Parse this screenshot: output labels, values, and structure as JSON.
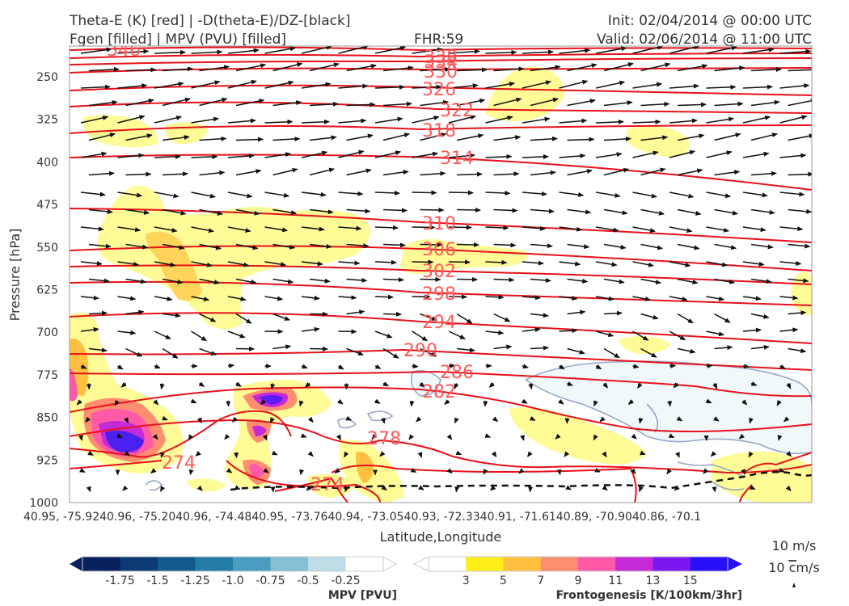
{
  "header": {
    "title_left_1": "Theta-E (K) [red] | -D(theta-E)/DZ-[black]",
    "title_left_2": "Fgen [filled] | MPV (PVU) [filled]",
    "fhr": "FHR:59",
    "init": "Init: 02/04/2014 @ 00:00 UTC",
    "valid": "Valid: 02/06/2014 @ 11:00 UTC"
  },
  "chart_data": {
    "type": "cross-section",
    "xlabel": "Latitude,Longitude",
    "ylabel": "Pressure [hPa]",
    "x_ticks": [
      "40.95, -75.92",
      "40.96, -75.20",
      "40.96, -74.48",
      "40.95, -73.76",
      "40.94, -73.05",
      "40.93, -72.33",
      "40.91, -71.61",
      "40.89, -70.90",
      "40.86, -70.1"
    ],
    "x_tick_texts": [
      "40.95, -75.92",
      "40.96, -75.20",
      "40.96, -74.48",
      "40.95, -73.76",
      "40.94, -73.05",
      "40.93, -72.33",
      "40.91, -71.61",
      "40.89, -70.90",
      "40.86, -70.1"
    ],
    "x_tick_labels": [
      "40.95, -75.92",
      "40.96, -75.20",
      "40.96, -74.48",
      "40.95, -73.76",
      "40.94, -73.05",
      "40.93, -72.33",
      "40.91, -71.61",
      "40.89, -70.90",
      "40.86, -70.1"
    ],
    "x_display": "40.95, -75.9240.96, -75.2040.96, -74.4840.95, -73.7640.94, -73.0540.93, -72.3340.91, -71.6140.89, -70.9040.86, -70.1",
    "x_strings": [
      "40.95, -75.92",
      "40.96, -75.20",
      "40.96, -74.48",
      "40.95, -73.76",
      "40.94, -73.05",
      "40.93, -72.33",
      "40.91, -71.61",
      "40.89, -70.90",
      "40.86, -70.1"
    ],
    "y_ticks": [
      1000,
      925,
      850,
      775,
      700,
      625,
      550,
      475,
      400,
      325,
      250
    ],
    "ylim": [
      1000,
      200
    ],
    "theta_e_labels": [
      "346",
      "338",
      "334",
      "330",
      "326",
      "322",
      "318",
      "314",
      "310",
      "306",
      "302",
      "298",
      "294",
      "290",
      "286",
      "282",
      "278",
      "274",
      "274"
    ],
    "mpv_colorbar": {
      "title": "MPV [PVU]",
      "ticks": [
        "-1.75",
        "-1.5",
        "-1.25",
        "-1.0",
        "-0.75",
        "-0.5",
        "-0.25"
      ],
      "colors": [
        "#08215c",
        "#0b3a75",
        "#12598e",
        "#237ca6",
        "#4a9dc0",
        "#84bfd5",
        "#bddce6",
        "#ffffff"
      ]
    },
    "fgen_colorbar": {
      "title": "Frontogenesis [K/100km/3hr]",
      "ticks": [
        "3",
        "5",
        "7",
        "9",
        "11",
        "13",
        "15"
      ],
      "colors": [
        "#ffffff",
        "#ffee18",
        "#ffc040",
        "#ff8d70",
        "#ff5aa8",
        "#c42ad6",
        "#7a18f0",
        "#2a10f8"
      ]
    },
    "wind_key": [
      "10 m/s",
      "10 cm/s"
    ],
    "colors": {
      "theta_e": "#e8101a",
      "vectors": "#111111",
      "mpv_contour": "#97a7c6",
      "axis": "#999999"
    }
  }
}
